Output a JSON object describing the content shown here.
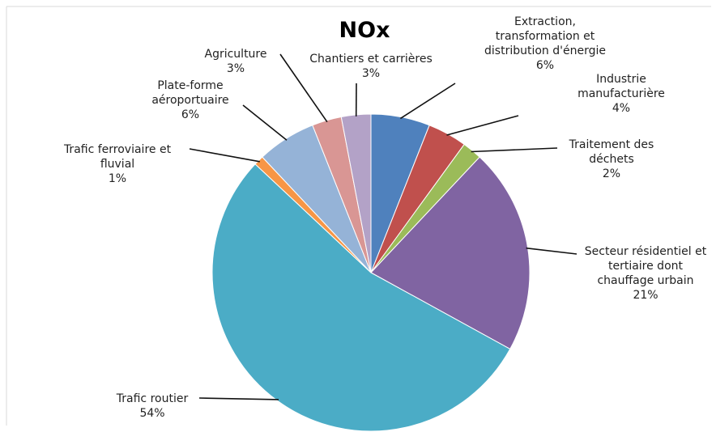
{
  "chart_data": {
    "type": "pie",
    "title": "NOx",
    "slices": [
      {
        "label": "Extraction,\ntransformation et\ndistribution d'énergie",
        "value": 6,
        "value_label": "6%",
        "color": "#4f81bd"
      },
      {
        "label": "Industrie\nmanufacturière",
        "value": 4,
        "value_label": "4%",
        "color": "#c0504d"
      },
      {
        "label": "Traitement des\ndéchets",
        "value": 2,
        "value_label": "2%",
        "color": "#9bbb59"
      },
      {
        "label": "Secteur résidentiel et\ntertiaire dont\nchauffage urbain",
        "value": 21,
        "value_label": "21%",
        "color": "#8064a2"
      },
      {
        "label": "Trafic routier",
        "value": 54,
        "value_label": "54%",
        "color": "#4bacc6"
      },
      {
        "label": "Trafic ferroviaire et\nfluvial",
        "value": 1,
        "value_label": "1%",
        "color": "#f79646"
      },
      {
        "label": "Plate-forme\naéroportuaire",
        "value": 6,
        "value_label": "6%",
        "color": "#95b3d7"
      },
      {
        "label": "Agriculture",
        "value": 3,
        "value_label": "3%",
        "color": "#d99694"
      },
      {
        "label": "Chantiers et carrières",
        "value": 3,
        "value_label": "3%",
        "color": "#b3a2c7"
      }
    ]
  }
}
